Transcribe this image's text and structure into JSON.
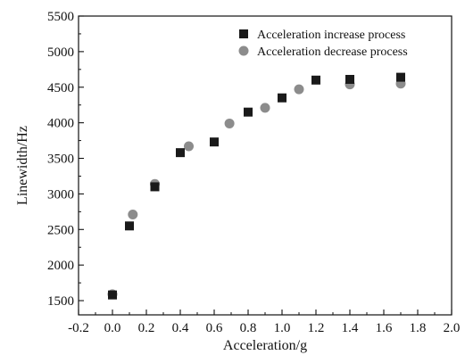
{
  "chart_data": {
    "type": "scatter",
    "title": "",
    "xlabel": "Acceleration/g",
    "ylabel": "Linewidth/Hz",
    "xlim": [
      -0.2,
      2.0
    ],
    "ylim": [
      1300,
      5500
    ],
    "x_ticks": [
      "-0.2",
      "0.0",
      "0.2",
      "0.4",
      "0.6",
      "0.8",
      "1.0",
      "1.2",
      "1.4",
      "1.6",
      "1.8",
      "2.0"
    ],
    "y_ticks": [
      "1500",
      "2000",
      "2500",
      "3000",
      "3500",
      "4000",
      "4500",
      "5000",
      "5500"
    ],
    "grid": false,
    "legend_position": "top-right",
    "series": [
      {
        "name": "Acceleration increase process",
        "marker": "square",
        "color": "#1a1a1a",
        "points": [
          {
            "x": 0.0,
            "y": 1580
          },
          {
            "x": 0.1,
            "y": 2550
          },
          {
            "x": 0.25,
            "y": 3100
          },
          {
            "x": 0.4,
            "y": 3580
          },
          {
            "x": 0.6,
            "y": 3730
          },
          {
            "x": 0.8,
            "y": 4150
          },
          {
            "x": 1.0,
            "y": 4350
          },
          {
            "x": 1.2,
            "y": 4600
          },
          {
            "x": 1.4,
            "y": 4610
          },
          {
            "x": 1.7,
            "y": 4640
          }
        ]
      },
      {
        "name": "Acceleration decrease process",
        "marker": "circle",
        "color": "#8c8c8c",
        "points": [
          {
            "x": 0.0,
            "y": 1590
          },
          {
            "x": 0.12,
            "y": 2710
          },
          {
            "x": 0.25,
            "y": 3140
          },
          {
            "x": 0.45,
            "y": 3670
          },
          {
            "x": 0.69,
            "y": 3990
          },
          {
            "x": 0.9,
            "y": 4210
          },
          {
            "x": 1.1,
            "y": 4470
          },
          {
            "x": 1.4,
            "y": 4540
          },
          {
            "x": 1.7,
            "y": 4550
          }
        ]
      }
    ]
  }
}
